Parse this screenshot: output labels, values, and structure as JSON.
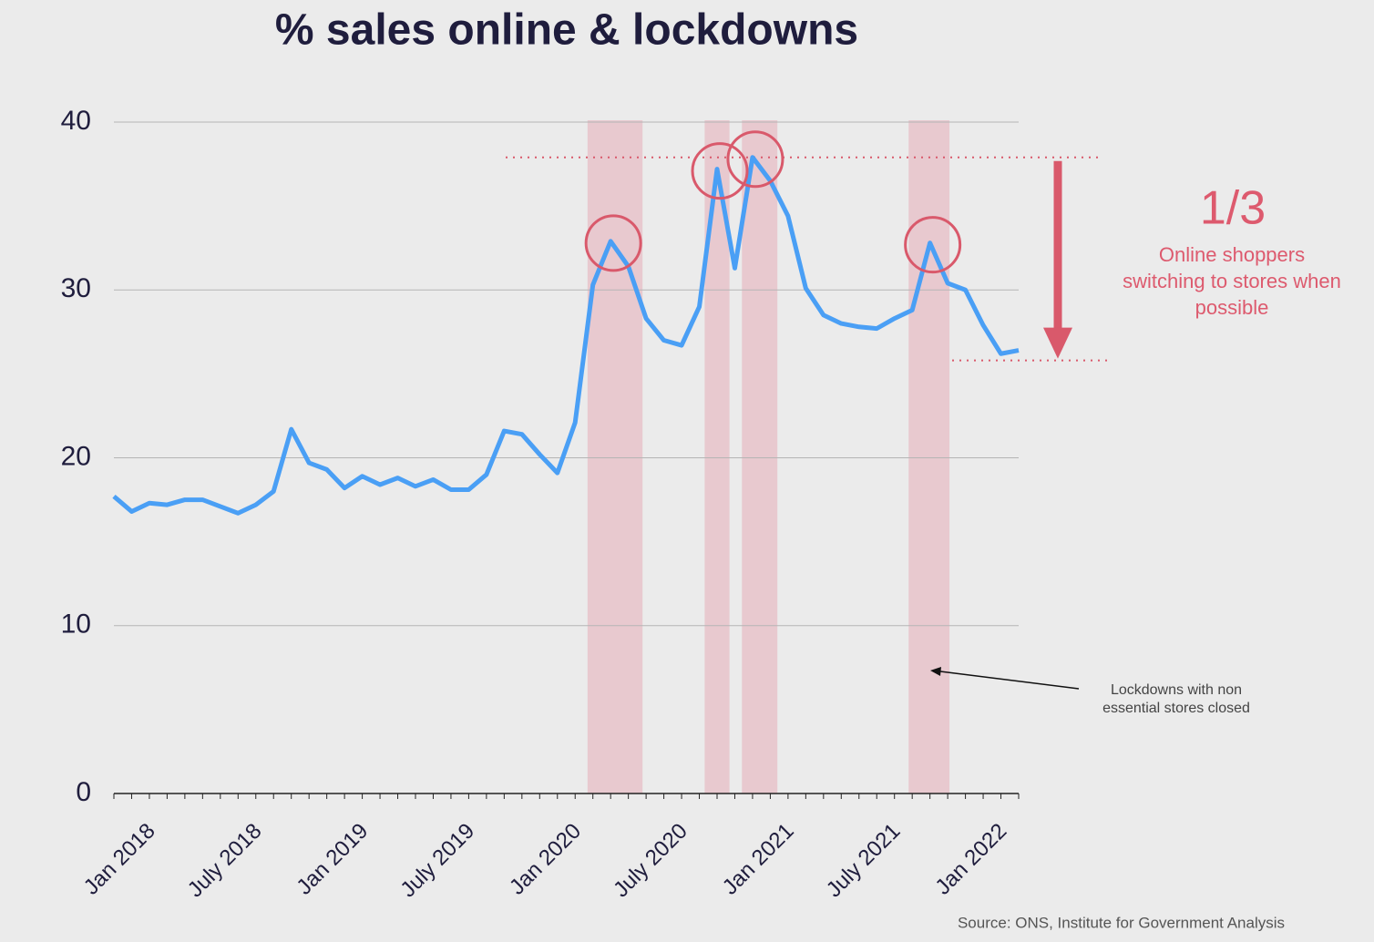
{
  "chart_data": {
    "type": "line",
    "title": "% sales online & lockdowns",
    "categories": [
      "Jan 2018",
      null,
      null,
      null,
      null,
      null,
      "July 2018",
      null,
      null,
      null,
      null,
      null,
      "Jan 2019",
      null,
      null,
      null,
      null,
      null,
      "July 2019",
      null,
      null,
      null,
      null,
      null,
      "Jan 2020",
      null,
      null,
      null,
      null,
      null,
      "July 2020",
      null,
      null,
      null,
      null,
      null,
      "Jan 2021",
      null,
      null,
      null,
      null,
      null,
      "July 2021",
      null,
      null,
      null,
      null,
      null,
      "Jan 2022",
      null,
      null,
      null
    ],
    "values": [
      17.7,
      16.8,
      17.3,
      17.2,
      17.5,
      17.5,
      17.1,
      16.7,
      17.2,
      18.0,
      21.7,
      19.7,
      19.3,
      18.2,
      18.9,
      18.4,
      18.8,
      18.3,
      18.7,
      18.1,
      18.1,
      19.0,
      21.6,
      21.4,
      20.2,
      19.1,
      22.1,
      30.3,
      32.9,
      31.4,
      28.3,
      27.0,
      26.7,
      29.0,
      37.2,
      31.3,
      37.9,
      36.5,
      34.4,
      30.1,
      28.5,
      28.0,
      27.8,
      27.7,
      28.3,
      28.8,
      32.8,
      30.4,
      30.0,
      27.9,
      26.2,
      26.4
    ],
    "color": "#4a9ff5",
    "ylim": [
      0,
      40
    ],
    "yticks": [
      0,
      10,
      20,
      30,
      40
    ],
    "grid": true,
    "lockdowns": [
      [
        26.7,
        29.8
      ],
      [
        33.3,
        34.7
      ],
      [
        35.4,
        37.4
      ],
      [
        44.8,
        47.1
      ]
    ],
    "highlights": [
      28,
      34,
      36,
      46
    ],
    "reference_lines": [
      37.9,
      25.8
    ],
    "change_label": "1/3",
    "change_text": [
      "Online shoppers",
      "switching to stores when",
      "possible"
    ],
    "lockdown_note": [
      "Lockdowns with non",
      "essential stores closed"
    ],
    "source": "Source: ONS, Institute for Government Analysis"
  }
}
